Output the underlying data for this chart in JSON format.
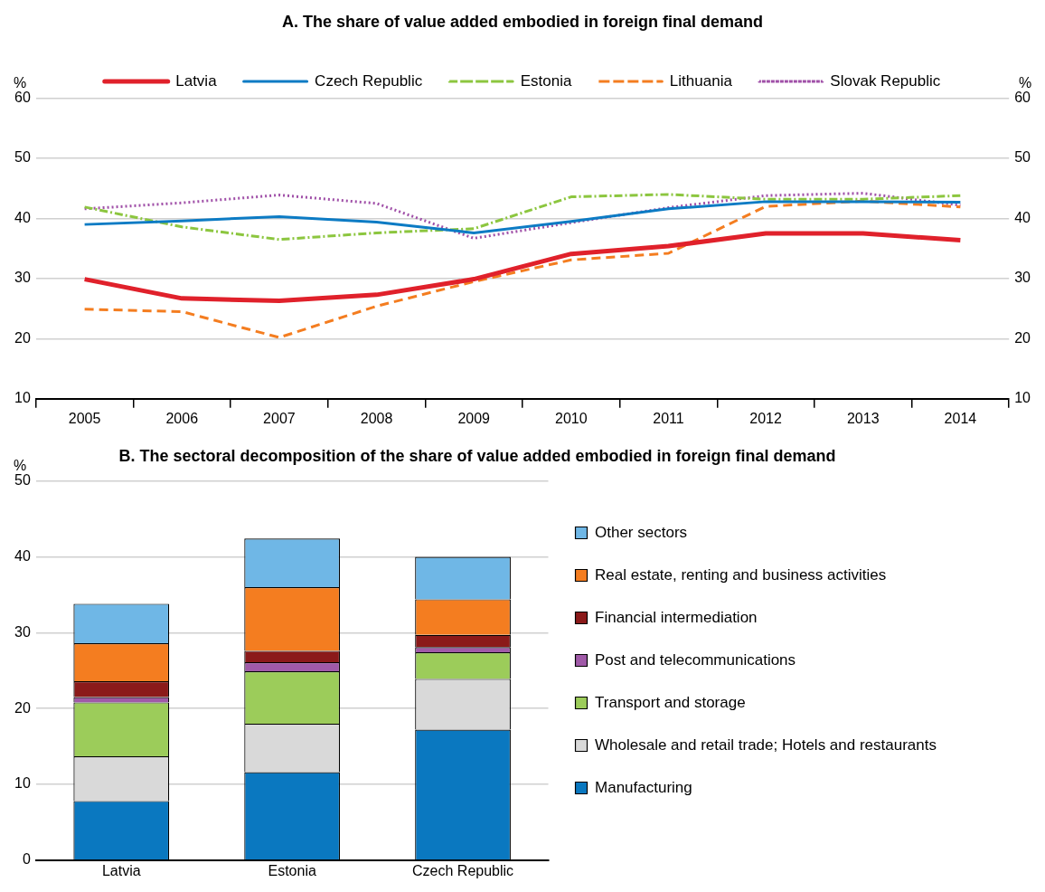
{
  "chart_data": [
    {
      "type": "line",
      "title": "A. The share of value added embodied in foreign final demand",
      "ylabel": "%",
      "y2label": "%",
      "categories": [
        "2005",
        "2006",
        "2007",
        "2008",
        "2009",
        "2010",
        "2011",
        "2012",
        "2013",
        "2014"
      ],
      "ylim": [
        10,
        60
      ],
      "yticks": [
        10,
        20,
        30,
        40,
        50,
        60
      ],
      "y2lim": [
        10,
        60
      ],
      "y2ticks": [
        10,
        20,
        30,
        40,
        50,
        60
      ],
      "grid": "y",
      "legend": "top",
      "marker": "none",
      "series": [
        {
          "name": "Latvia",
          "color": "#e0212b",
          "line_style": "solid",
          "values": [
            29.9,
            26.7,
            26.3,
            27.3,
            29.9,
            34.1,
            35.4,
            37.5,
            37.5,
            36.4
          ]
        },
        {
          "name": "Czech Republic",
          "color": "#0c7bc4",
          "line_style": "solid",
          "values": [
            39.0,
            39.6,
            40.3,
            39.4,
            37.6,
            39.5,
            41.6,
            42.8,
            42.8,
            42.7
          ]
        },
        {
          "name": "Estonia",
          "color": "#8cc63f",
          "line_style": "dashdot",
          "values": [
            41.9,
            38.6,
            36.5,
            37.6,
            38.3,
            43.6,
            44.0,
            43.2,
            43.2,
            43.8
          ]
        },
        {
          "name": "Lithuania",
          "color": "#f47d20",
          "line_style": "dashed",
          "values": [
            24.9,
            24.5,
            20.2,
            25.4,
            29.5,
            33.1,
            34.2,
            42.0,
            42.9,
            41.9
          ]
        },
        {
          "name": "Slovak Republic",
          "color": "#a050a8",
          "line_style": "dotted",
          "values": [
            41.6,
            42.6,
            43.9,
            42.5,
            36.7,
            39.3,
            41.8,
            43.8,
            44.2,
            42.2
          ]
        }
      ]
    },
    {
      "type": "bar",
      "stacked": true,
      "title": "B. The sectoral decomposition of the share of value added embodied in foreign final demand",
      "ylabel": "%",
      "categories": [
        "Latvia",
        "Estonia",
        "Czech Republic"
      ],
      "ylim": [
        0,
        50
      ],
      "yticks": [
        0,
        10,
        20,
        30,
        40,
        50
      ],
      "grid": "y",
      "legend": "right",
      "series": [
        {
          "name": "Manufacturing",
          "color": "#0a78c0",
          "values": [
            7.8,
            11.6,
            17.2
          ]
        },
        {
          "name": "Wholesale and retail trade; Hotels and restaurants",
          "color": "#d9d9d9",
          "values": [
            5.9,
            6.4,
            6.7
          ]
        },
        {
          "name": "Transport and storage",
          "color": "#9ccc5a",
          "values": [
            7.1,
            6.9,
            3.5
          ]
        },
        {
          "name": "Post and telecommunications",
          "color": "#a05aa8",
          "values": [
            0.7,
            1.2,
            0.7
          ]
        },
        {
          "name": "Financial intermediation",
          "color": "#8b1a1a",
          "values": [
            2.1,
            1.5,
            1.6
          ]
        },
        {
          "name": "Real estate, renting and business activities",
          "color": "#f47d20",
          "values": [
            5.0,
            8.4,
            4.7
          ]
        },
        {
          "name": "Other sectors",
          "color": "#6fb7e6",
          "values": [
            5.2,
            6.4,
            5.6
          ]
        }
      ]
    }
  ]
}
